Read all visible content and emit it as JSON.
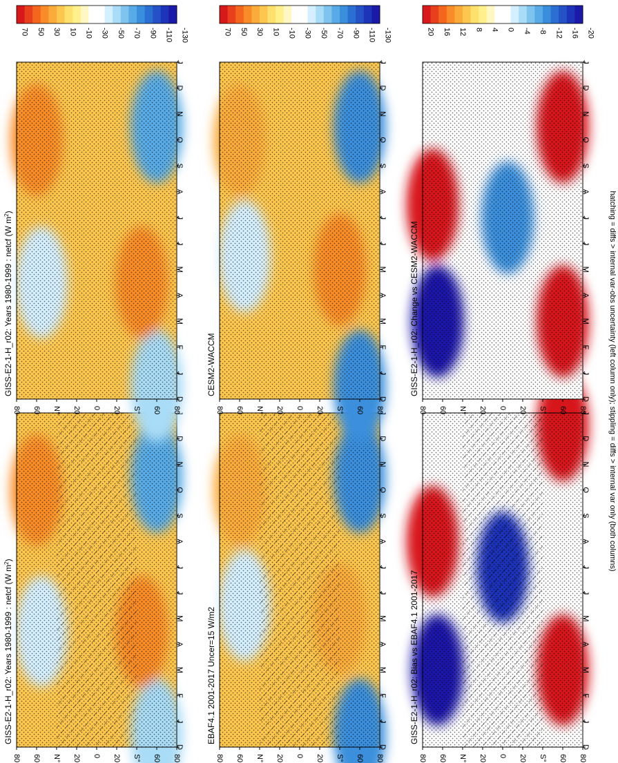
{
  "figure": {
    "caption": "hatching = diffs > internal var-obs uncertainty (left column only); stippling = diffs > internal var only (both columns)"
  },
  "colormaps": {
    "absolute": {
      "labels": [
        "70",
        "50",
        "30",
        "10",
        "-10",
        "-30",
        "-50",
        "-70",
        "-90",
        "-110",
        "-130"
      ],
      "colors": [
        "#d7191c",
        "#e8401c",
        "#f4661e",
        "#f98c28",
        "#fbab3a",
        "#fdc74f",
        "#fee16c",
        "#fff08c",
        "#fff8c4",
        "#ffffff",
        "#ffffff",
        "#d4efff",
        "#a9dcf6",
        "#7ec4ee",
        "#58abe6",
        "#3a8fdc",
        "#2c6fd2",
        "#2451c6",
        "#1d33b8",
        "#1a19a8"
      ]
    },
    "difference": {
      "labels": [
        "20",
        "16",
        "12",
        "8",
        "4",
        "0",
        "-4",
        "-8",
        "-12",
        "-16",
        "-20"
      ],
      "colors": [
        "#d7191c",
        "#e8401c",
        "#f4661e",
        "#f98c28",
        "#fbab3a",
        "#fdc74f",
        "#fee16c",
        "#fff08c",
        "#fff8c4",
        "#ffffff",
        "#ffffff",
        "#d4efff",
        "#a9dcf6",
        "#7ec4ee",
        "#58abe6",
        "#3a8fdc",
        "#2c6fd2",
        "#2451c6",
        "#1d33b8",
        "#1a19a8"
      ]
    }
  },
  "chart_data": [
    {
      "type": "heatmap",
      "title": "GISS-E2-1-H_r02: Years 1980-1999 : netcf (W m",
      "title_superscript": "2",
      "title_suffix": ")",
      "x_months": [
        "D",
        "J",
        "F",
        "M",
        "A",
        "M",
        "J",
        "J",
        "A",
        "S",
        "O",
        "N",
        "D",
        "J"
      ],
      "y_ticks": [
        "80",
        "60",
        "N°",
        "20",
        "0",
        "20",
        "S°",
        "60",
        "80"
      ],
      "colormap": "absolute",
      "hatching": true,
      "stippling": true,
      "features": [
        {
          "month": 4.5,
          "lat": 55,
          "value": -45
        },
        {
          "month": 0.5,
          "lat": -60,
          "value": -55
        },
        {
          "month": 10.5,
          "lat": -60,
          "value": -75
        },
        {
          "month": 4.5,
          "lat": -45,
          "value": 45
        },
        {
          "month": 10,
          "lat": 60,
          "value": 40
        }
      ]
    },
    {
      "type": "heatmap",
      "title": "GISS-E2-1-H_r02: Years 1980-1999 : netcf (W m",
      "title_superscript": "2",
      "title_suffix": ")",
      "x_months": [
        "D",
        "J",
        "F",
        "M",
        "A",
        "M",
        "J",
        "J",
        "A",
        "S",
        "O",
        "N",
        "D",
        "J"
      ],
      "y_ticks": [
        "80",
        "60",
        "N°",
        "20",
        "0",
        "20",
        "S°",
        "60",
        "80"
      ],
      "colormap": "absolute",
      "hatching": false,
      "stippling": true,
      "features": [
        {
          "month": 4.5,
          "lat": 55,
          "value": -45
        },
        {
          "month": 0.5,
          "lat": -60,
          "value": -55
        },
        {
          "month": 10.5,
          "lat": -60,
          "value": -75
        },
        {
          "month": 4.5,
          "lat": -45,
          "value": 45
        },
        {
          "month": 10,
          "lat": 60,
          "value": 40
        }
      ]
    },
    {
      "type": "heatmap",
      "title": "EBAF4.1 2001-2017 Uncer=15 W/m2",
      "x_months": [
        "D",
        "J",
        "F",
        "M",
        "A",
        "M",
        "J",
        "J",
        "A",
        "S",
        "O",
        "N",
        "D",
        "J"
      ],
      "y_ticks": [
        "80",
        "60",
        "N°",
        "20",
        "0",
        "20",
        "S°",
        "60",
        "80"
      ],
      "colormap": "absolute",
      "hatching": true,
      "stippling": true,
      "features": [
        {
          "month": 5.5,
          "lat": 55,
          "value": -45
        },
        {
          "month": 0.5,
          "lat": -60,
          "value": -85
        },
        {
          "month": 10.5,
          "lat": -60,
          "value": -85
        },
        {
          "month": 5,
          "lat": -40,
          "value": 35
        },
        {
          "month": 10,
          "lat": 60,
          "value": 35
        }
      ]
    },
    {
      "type": "heatmap",
      "title": "CESM2-WACCM",
      "x_months": [
        "D",
        "J",
        "F",
        "M",
        "A",
        "M",
        "J",
        "J",
        "A",
        "S",
        "O",
        "N",
        "D",
        "J"
      ],
      "y_ticks": [
        "80",
        "60",
        "N°",
        "20",
        "0",
        "20",
        "S°",
        "60",
        "80"
      ],
      "colormap": "absolute",
      "hatching": false,
      "stippling": true,
      "features": [
        {
          "month": 5.5,
          "lat": 55,
          "value": -50
        },
        {
          "month": 0.5,
          "lat": -60,
          "value": -95
        },
        {
          "month": 10.5,
          "lat": -60,
          "value": -95
        },
        {
          "month": 5,
          "lat": -40,
          "value": 45
        },
        {
          "month": 10,
          "lat": 60,
          "value": 35
        }
      ]
    },
    {
      "type": "heatmap",
      "title": "GISS-E2-1-H_r02: Bias vs EBAF4.1 2001-2017",
      "x_months": [
        "D",
        "J",
        "F",
        "M",
        "A",
        "M",
        "J",
        "J",
        "A",
        "S",
        "O",
        "N",
        "D",
        "J"
      ],
      "y_ticks": [
        "80",
        "60",
        "N°",
        "20",
        "0",
        "20",
        "S°",
        "60",
        "80"
      ],
      "colormap": "difference",
      "hatching": true,
      "stippling": true,
      "features": [
        {
          "month": 8,
          "lat": 70,
          "value": 20
        },
        {
          "month": 3,
          "lat": 65,
          "value": -20
        },
        {
          "month": 3,
          "lat": -60,
          "value": 20
        },
        {
          "month": 12.5,
          "lat": -60,
          "value": 20
        },
        {
          "month": 7,
          "lat": 0,
          "value": -18
        }
      ]
    },
    {
      "type": "heatmap",
      "title": "GISS-E2-1-H_r02: Change vs CESM2-WACCM",
      "x_months": [
        "D",
        "J",
        "F",
        "M",
        "A",
        "M",
        "J",
        "J",
        "A",
        "S",
        "O",
        "N",
        "D",
        "J"
      ],
      "y_ticks": [
        "80",
        "60",
        "N°",
        "20",
        "0",
        "20",
        "S°",
        "60",
        "80"
      ],
      "colormap": "difference",
      "hatching": false,
      "stippling": true,
      "features": [
        {
          "month": 7.5,
          "lat": 70,
          "value": 20
        },
        {
          "month": 3,
          "lat": 65,
          "value": -20
        },
        {
          "month": 3,
          "lat": -60,
          "value": 20
        },
        {
          "month": 10.5,
          "lat": -60,
          "value": 20
        },
        {
          "month": 7,
          "lat": -5,
          "value": -12
        }
      ]
    }
  ]
}
